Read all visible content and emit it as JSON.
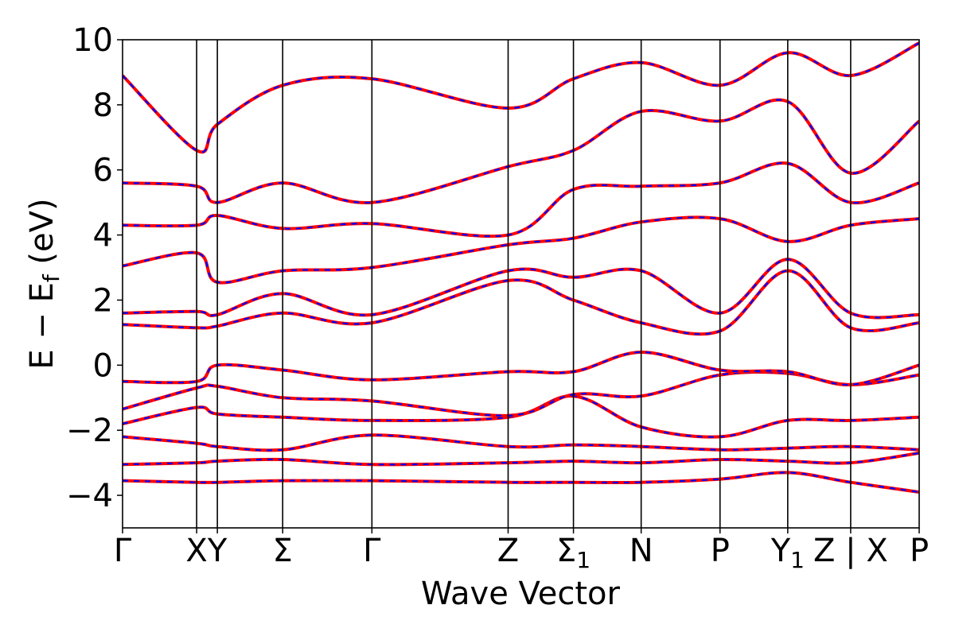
{
  "chart_data": {
    "type": "line",
    "title": "",
    "xlabel": "Wave Vector",
    "ylabel": "E − E",
    "ylabel_sub": "f",
    "ylabel_unit": " (eV)",
    "ylim": [
      -5,
      10
    ],
    "xlim": [
      0,
      1
    ],
    "grid": false,
    "legend": "none",
    "yticks": [
      {
        "value": -4,
        "label": "−4"
      },
      {
        "value": -2,
        "label": "−2"
      },
      {
        "value": 0,
        "label": "0"
      },
      {
        "value": 2,
        "label": "2"
      },
      {
        "value": 4,
        "label": "4"
      },
      {
        "value": 6,
        "label": "6"
      },
      {
        "value": 8,
        "label": "8"
      },
      {
        "value": 10,
        "label": "10"
      }
    ],
    "high_symmetry_points": [
      {
        "x": 0.0,
        "label": "Γ",
        "sub": ""
      },
      {
        "x": 0.093,
        "label": "X",
        "sub": ""
      },
      {
        "x": 0.119,
        "label": "Y",
        "sub": ""
      },
      {
        "x": 0.201,
        "label": "Σ",
        "sub": ""
      },
      {
        "x": 0.313,
        "label": "Γ",
        "sub": ""
      },
      {
        "x": 0.484,
        "label": "Z",
        "sub": ""
      },
      {
        "x": 0.566,
        "label": "Σ",
        "sub": "1"
      },
      {
        "x": 0.651,
        "label": "N",
        "sub": ""
      },
      {
        "x": 0.75,
        "label": "P",
        "sub": ""
      },
      {
        "x": 0.835,
        "label": "Y",
        "sub": "1"
      },
      {
        "x": 0.914,
        "label": "Z | X",
        "sub": ""
      },
      {
        "x": 1.0,
        "label": "P",
        "sub": ""
      }
    ],
    "series_style": [
      {
        "color": "#ff0000",
        "dash": "solid"
      },
      {
        "color": "#0000ff",
        "dash": "dashed"
      }
    ],
    "bands": [
      {
        "k": [
          0,
          0.093,
          0.119,
          0.201,
          0.313,
          0.484,
          0.566,
          0.651,
          0.75,
          0.835,
          0.914,
          1.0
        ],
        "e": [
          -3.55,
          -3.6,
          -3.6,
          -3.55,
          -3.55,
          -3.6,
          -3.6,
          -3.6,
          -3.5,
          -3.3,
          -3.6,
          -3.9
        ]
      },
      {
        "k": [
          0,
          0.093,
          0.119,
          0.201,
          0.313,
          0.484,
          0.566,
          0.651,
          0.75,
          0.835,
          0.914,
          1.0
        ],
        "e": [
          -3.05,
          -3.0,
          -2.95,
          -2.9,
          -3.05,
          -3.0,
          -2.95,
          -3.0,
          -2.9,
          -2.95,
          -3.0,
          -2.7
        ]
      },
      {
        "k": [
          0,
          0.093,
          0.119,
          0.201,
          0.313,
          0.484,
          0.566,
          0.651,
          0.75,
          0.835,
          0.914,
          1.0
        ],
        "e": [
          -2.2,
          -2.4,
          -2.5,
          -2.6,
          -2.15,
          -2.5,
          -2.45,
          -2.5,
          -2.6,
          -2.55,
          -2.5,
          -2.6
        ]
      },
      {
        "k": [
          0,
          0.093,
          0.119,
          0.201,
          0.313,
          0.484,
          0.566,
          0.651,
          0.75,
          0.835,
          0.914,
          1.0
        ],
        "e": [
          -1.8,
          -1.3,
          -1.5,
          -1.6,
          -1.7,
          -1.6,
          -0.95,
          -1.9,
          -2.2,
          -1.7,
          -1.7,
          -1.6
        ]
      },
      {
        "k": [
          0,
          0.093,
          0.119,
          0.201,
          0.313,
          0.484,
          0.566,
          0.651,
          0.75,
          0.835,
          0.914,
          1.0
        ],
        "e": [
          -1.35,
          -0.7,
          -0.65,
          -1.0,
          -1.1,
          -1.55,
          -0.9,
          -0.95,
          -0.3,
          -0.25,
          -0.6,
          -0.3
        ]
      },
      {
        "k": [
          0,
          0.093,
          0.119,
          0.201,
          0.313,
          0.484,
          0.566,
          0.651,
          0.75,
          0.835,
          0.914,
          1.0
        ],
        "e": [
          -0.5,
          -0.5,
          0.0,
          -0.15,
          -0.45,
          -0.2,
          -0.2,
          0.4,
          -0.15,
          -0.2,
          -0.6,
          0.0
        ]
      },
      {
        "k": [
          0,
          0.093,
          0.119,
          0.201,
          0.313,
          0.484,
          0.566,
          0.651,
          0.75,
          0.835,
          0.914,
          1.0
        ],
        "e": [
          1.25,
          1.15,
          1.2,
          1.6,
          1.3,
          2.6,
          2.0,
          1.3,
          1.05,
          2.9,
          1.15,
          1.3
        ]
      },
      {
        "k": [
          0,
          0.093,
          0.119,
          0.201,
          0.313,
          0.484,
          0.566,
          0.651,
          0.75,
          0.835,
          0.914,
          1.0
        ],
        "e": [
          1.6,
          1.65,
          1.55,
          2.2,
          1.55,
          2.9,
          2.7,
          2.9,
          1.6,
          3.25,
          1.6,
          1.55
        ]
      },
      {
        "k": [
          0,
          0.093,
          0.119,
          0.201,
          0.313,
          0.484,
          0.566,
          0.651,
          0.75,
          0.835,
          0.914,
          1.0
        ],
        "e": [
          3.05,
          3.45,
          2.55,
          2.9,
          3.0,
          3.7,
          3.9,
          4.4,
          4.5,
          3.8,
          4.3,
          4.5
        ]
      },
      {
        "k": [
          0,
          0.093,
          0.119,
          0.201,
          0.313,
          0.484,
          0.566,
          0.651,
          0.75,
          0.835,
          0.914,
          1.0
        ],
        "e": [
          4.3,
          4.3,
          4.6,
          4.2,
          4.35,
          4.0,
          5.4,
          5.5,
          5.6,
          6.2,
          5.0,
          5.6
        ]
      },
      {
        "k": [
          0,
          0.093,
          0.119,
          0.201,
          0.313,
          0.484,
          0.566,
          0.651,
          0.75,
          0.835,
          0.914,
          1.0
        ],
        "e": [
          5.6,
          5.5,
          5.0,
          5.6,
          5.0,
          6.1,
          6.6,
          7.8,
          7.5,
          8.1,
          5.9,
          7.5
        ]
      },
      {
        "k": [
          0,
          0.093,
          0.119,
          0.201,
          0.313,
          0.484,
          0.566,
          0.651,
          0.75,
          0.835,
          0.914,
          1.0
        ],
        "e": [
          8.9,
          6.6,
          7.4,
          8.6,
          8.8,
          7.9,
          8.8,
          9.3,
          8.6,
          9.6,
          8.9,
          9.9
        ]
      }
    ]
  }
}
